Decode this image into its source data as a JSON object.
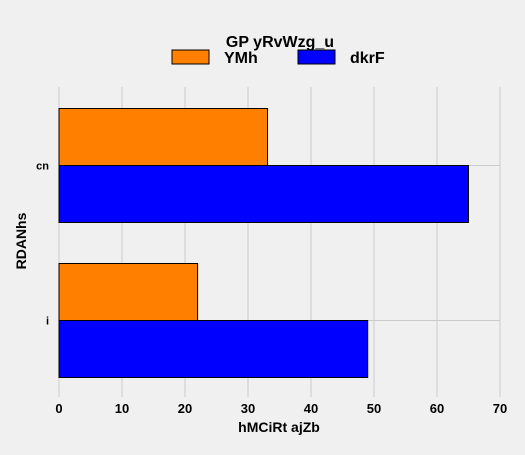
{
  "chart_data": {
    "type": "bar",
    "orientation": "horizontal",
    "title": "GP yRvWzg_u",
    "xlabel": "hMCiRt ajZb",
    "ylabel": "RDANhs",
    "categories": [
      "cn",
      "i"
    ],
    "series": [
      {
        "name": "YMh",
        "values": [
          33.1,
          22.0
        ],
        "color": "#ff7f00"
      },
      {
        "name": "dkrF",
        "values": [
          65.0,
          49.0
        ],
        "color": "#0000ff"
      }
    ],
    "xlim": [
      0,
      70
    ],
    "xticks": [
      0,
      10,
      20,
      30,
      40,
      50,
      60,
      70
    ],
    "grid": true,
    "legend_position": "top-center"
  }
}
